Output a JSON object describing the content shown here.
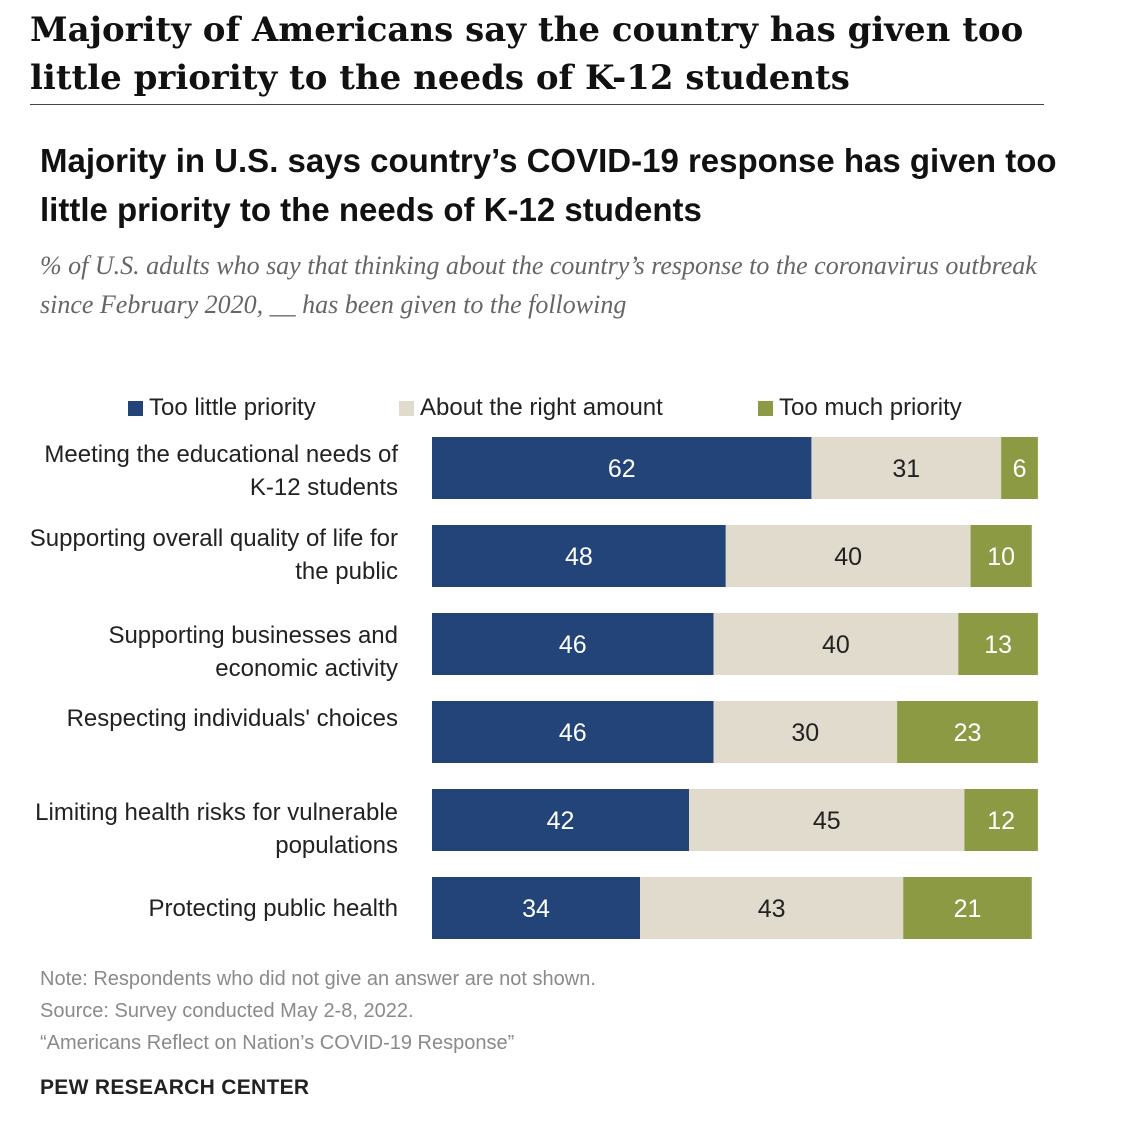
{
  "headline": "Majority of Americans say the country has given too little priority to the needs of K-12 students",
  "colors": {
    "too_little": "#234478",
    "about_right": "#e0dbcd",
    "too_much": "#8c9a43",
    "label_on_dark": "#ffffff",
    "label_on_light": "#222222"
  },
  "chart_data": {
    "type": "bar",
    "orientation": "horizontal",
    "stacked": true,
    "title": "Majority in U.S. says country’s COVID-19 response has given too little priority to the needs of K-12 students",
    "subtitle": "% of U.S. adults who say that thinking about the country’s response to the coronavirus outbreak since February 2020, __ has been given to the following",
    "legend_position": "top",
    "grid": false,
    "xlim": [
      0,
      100
    ],
    "categories": [
      "Meeting the educational needs of K-12 students",
      "Supporting overall quality of life for the public",
      "Supporting businesses and economic activity",
      "Respecting individuals' choices",
      "Limiting health risks for vulnerable populations",
      "Protecting public health"
    ],
    "series": [
      {
        "name": "Too little priority",
        "values": [
          62,
          48,
          46,
          46,
          42,
          34
        ]
      },
      {
        "name": "About the right amount",
        "values": [
          31,
          40,
          40,
          30,
          45,
          43
        ]
      },
      {
        "name": "Too much priority",
        "values": [
          6,
          10,
          13,
          23,
          12,
          21
        ]
      }
    ]
  },
  "notes": {
    "note": "Note: Respondents who did not give an answer are not shown.",
    "source": "Source: Survey conducted May 2-8, 2022.",
    "report": "“Americans Reflect on Nation’s COVID-19 Response”"
  },
  "brand": "PEW RESEARCH CENTER"
}
